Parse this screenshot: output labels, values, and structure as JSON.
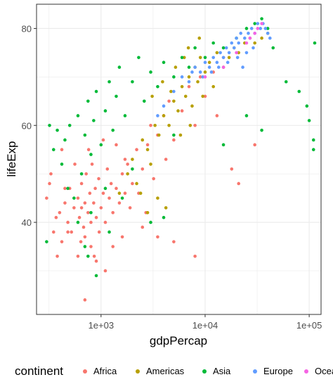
{
  "chart_data": {
    "type": "scatter",
    "title": "",
    "xlabel": "gdpPercap",
    "ylabel": "lifeExp",
    "x_scale": "log10",
    "xlim": [
      240,
      130000
    ],
    "ylim": [
      21,
      85
    ],
    "x_ticks": [
      {
        "value": 1000,
        "label": "1e+03"
      },
      {
        "value": 10000,
        "label": "1e+04"
      },
      {
        "value": 100000,
        "label": "1e+05"
      }
    ],
    "y_ticks": [
      {
        "value": 40,
        "label": "40"
      },
      {
        "value": 60,
        "label": "60"
      },
      {
        "value": 80,
        "label": "80"
      }
    ],
    "grid": true,
    "legend": {
      "position": "bottom",
      "title": "continent"
    },
    "series": [
      {
        "name": "Africa",
        "color": "#F8766D",
        "points": [
          [
            300,
            45
          ],
          [
            350,
            38
          ],
          [
            320,
            48
          ],
          [
            400,
            42
          ],
          [
            420,
            36
          ],
          [
            450,
            44
          ],
          [
            480,
            40
          ],
          [
            500,
            47
          ],
          [
            520,
            38
          ],
          [
            550,
            43
          ],
          [
            600,
            45
          ],
          [
            620,
            41
          ],
          [
            650,
            48
          ],
          [
            680,
            39
          ],
          [
            700,
            44
          ],
          [
            720,
            50
          ],
          [
            750,
            42
          ],
          [
            780,
            46
          ],
          [
            800,
            40
          ],
          [
            820,
            52
          ],
          [
            850,
            44
          ],
          [
            880,
            47
          ],
          [
            900,
            41
          ],
          [
            950,
            49
          ],
          [
            1000,
            43
          ],
          [
            1050,
            46
          ],
          [
            1100,
            40
          ],
          [
            1150,
            51
          ],
          [
            1200,
            45
          ],
          [
            1250,
            48
          ],
          [
            1300,
            42
          ],
          [
            1400,
            47
          ],
          [
            1500,
            44
          ],
          [
            1600,
            50
          ],
          [
            1700,
            46
          ],
          [
            1800,
            52
          ],
          [
            2000,
            48
          ],
          [
            2200,
            55
          ],
          [
            2500,
            51
          ],
          [
            2800,
            56
          ],
          [
            3000,
            60
          ],
          [
            3500,
            58
          ],
          [
            4000,
            62
          ],
          [
            4500,
            65
          ],
          [
            5000,
            57
          ],
          [
            6000,
            63
          ],
          [
            7000,
            68
          ],
          [
            8000,
            60
          ],
          [
            9000,
            70
          ],
          [
            10000,
            66
          ],
          [
            12000,
            71
          ],
          [
            13000,
            62
          ],
          [
            15000,
            74
          ],
          [
            18000,
            51
          ],
          [
            21000,
            48
          ],
          [
            30000,
            56
          ],
          [
            900,
            32
          ],
          [
            1100,
            30
          ],
          [
            800,
            35
          ],
          [
            600,
            33
          ],
          [
            700,
            37
          ],
          [
            1300,
            35
          ],
          [
            2500,
            39
          ],
          [
            3500,
            37
          ],
          [
            5000,
            36
          ],
          [
            8000,
            33
          ],
          [
            450,
            47
          ],
          [
            560,
            52
          ],
          [
            640,
            36
          ],
          [
            760,
            55
          ],
          [
            860,
            33
          ],
          [
            960,
            38
          ],
          [
            1600,
            37
          ],
          [
            1900,
            43
          ],
          [
            2300,
            46
          ],
          [
            2700,
            42
          ],
          [
            3200,
            49
          ],
          [
            4200,
            53
          ],
          [
            420,
            55
          ],
          [
            480,
            38
          ],
          [
            380,
            33
          ],
          [
            650,
            43
          ],
          [
            1050,
            57
          ],
          [
            1400,
            56
          ],
          [
            1700,
            53
          ],
          [
            700,
            24
          ],
          [
            330,
            50
          ],
          [
            370,
            41
          ]
        ]
      },
      {
        "name": "Americas",
        "color": "#B79F00",
        "points": [
          [
            1500,
            46
          ],
          [
            1800,
            50
          ],
          [
            2000,
            53
          ],
          [
            2200,
            48
          ],
          [
            2500,
            57
          ],
          [
            2800,
            55
          ],
          [
            3000,
            52
          ],
          [
            3300,
            60
          ],
          [
            3600,
            58
          ],
          [
            4000,
            62
          ],
          [
            4500,
            60
          ],
          [
            5000,
            65
          ],
          [
            5500,
            63
          ],
          [
            6000,
            68
          ],
          [
            6500,
            66
          ],
          [
            7000,
            70
          ],
          [
            7500,
            64
          ],
          [
            8000,
            72
          ],
          [
            8500,
            69
          ],
          [
            9000,
            74
          ],
          [
            10000,
            71
          ],
          [
            11000,
            73
          ],
          [
            12000,
            68
          ],
          [
            13000,
            75
          ],
          [
            15000,
            72
          ],
          [
            17000,
            74
          ],
          [
            19000,
            76
          ],
          [
            21000,
            75
          ],
          [
            24000,
            77
          ],
          [
            27000,
            78
          ],
          [
            30000,
            77
          ],
          [
            35000,
            78
          ],
          [
            40000,
            79
          ],
          [
            3500,
            45
          ],
          [
            4200,
            43
          ],
          [
            2800,
            42
          ],
          [
            2400,
            46
          ],
          [
            5200,
            72
          ],
          [
            6300,
            74
          ],
          [
            5800,
            58
          ],
          [
            7200,
            60
          ],
          [
            4700,
            67
          ],
          [
            3100,
            66
          ],
          [
            3900,
            69
          ],
          [
            9500,
            66
          ],
          [
            8800,
            78
          ],
          [
            6900,
            76
          ]
        ]
      },
      {
        "name": "Asia",
        "color": "#00BA38",
        "points": [
          [
            300,
            36
          ],
          [
            350,
            55
          ],
          [
            380,
            59
          ],
          [
            420,
            52
          ],
          [
            450,
            57
          ],
          [
            500,
            60
          ],
          [
            550,
            45
          ],
          [
            600,
            62
          ],
          [
            650,
            50
          ],
          [
            700,
            58
          ],
          [
            750,
            65
          ],
          [
            800,
            54
          ],
          [
            850,
            61
          ],
          [
            900,
            67
          ],
          [
            1000,
            56
          ],
          [
            1100,
            63
          ],
          [
            1200,
            69
          ],
          [
            1300,
            59
          ],
          [
            1400,
            66
          ],
          [
            1500,
            72
          ],
          [
            1700,
            62
          ],
          [
            2000,
            69
          ],
          [
            2300,
            74
          ],
          [
            2600,
            65
          ],
          [
            3000,
            71
          ],
          [
            3500,
            68
          ],
          [
            4000,
            73
          ],
          [
            5000,
            70
          ],
          [
            6000,
            74
          ],
          [
            7000,
            72
          ],
          [
            8000,
            76
          ],
          [
            10000,
            74
          ],
          [
            12000,
            77
          ],
          [
            15000,
            76
          ],
          [
            20000,
            78
          ],
          [
            25000,
            80
          ],
          [
            30000,
            81
          ],
          [
            35000,
            82
          ],
          [
            40000,
            80
          ],
          [
            60000,
            69
          ],
          [
            80000,
            67
          ],
          [
            100000,
            61
          ],
          [
            110000,
            55
          ],
          [
            95000,
            64
          ],
          [
            110000,
            57
          ],
          [
            113000,
            77
          ],
          [
            45000,
            76
          ],
          [
            35000,
            59
          ],
          [
            25000,
            62
          ],
          [
            15000,
            56
          ],
          [
            900,
            29
          ],
          [
            750,
            33
          ],
          [
            800,
            42
          ],
          [
            1200,
            38
          ],
          [
            600,
            40
          ],
          [
            700,
            35
          ],
          [
            1100,
            47
          ],
          [
            1600,
            45
          ],
          [
            2000,
            51
          ],
          [
            5000,
            58
          ],
          [
            4000,
            41
          ],
          [
            3000,
            40
          ],
          [
            480,
            47
          ],
          [
            320,
            60
          ]
        ]
      },
      {
        "name": "Europe",
        "color": "#619CFF",
        "points": [
          [
            5000,
            67
          ],
          [
            6000,
            70
          ],
          [
            7000,
            69
          ],
          [
            8000,
            72
          ],
          [
            9000,
            71
          ],
          [
            10000,
            73
          ],
          [
            11000,
            72
          ],
          [
            12000,
            74
          ],
          [
            13000,
            73
          ],
          [
            14000,
            75
          ],
          [
            15000,
            74
          ],
          [
            16000,
            76
          ],
          [
            17000,
            75
          ],
          [
            18000,
            77
          ],
          [
            19000,
            76
          ],
          [
            20000,
            78
          ],
          [
            21000,
            77
          ],
          [
            22000,
            79
          ],
          [
            24000,
            78
          ],
          [
            26000,
            79
          ],
          [
            28000,
            80
          ],
          [
            30000,
            79
          ],
          [
            32000,
            81
          ],
          [
            34000,
            80
          ],
          [
            36000,
            81
          ],
          [
            38000,
            80
          ],
          [
            40000,
            79
          ],
          [
            42000,
            78
          ],
          [
            4000,
            64
          ],
          [
            3500,
            62
          ],
          [
            7500,
            71
          ],
          [
            9500,
            70
          ],
          [
            11500,
            71
          ],
          [
            13500,
            72
          ],
          [
            16500,
            73
          ],
          [
            20500,
            74
          ],
          [
            25000,
            75
          ],
          [
            29000,
            76
          ],
          [
            23000,
            72
          ]
        ]
      },
      {
        "name": "Oceania",
        "color": "#F564E3",
        "points": [
          [
            10000,
            70
          ],
          [
            15000,
            72
          ],
          [
            20000,
            75
          ],
          [
            25000,
            77
          ],
          [
            30000,
            79
          ],
          [
            35000,
            81
          ],
          [
            32000,
            80
          ],
          [
            27000,
            78
          ]
        ]
      }
    ]
  }
}
